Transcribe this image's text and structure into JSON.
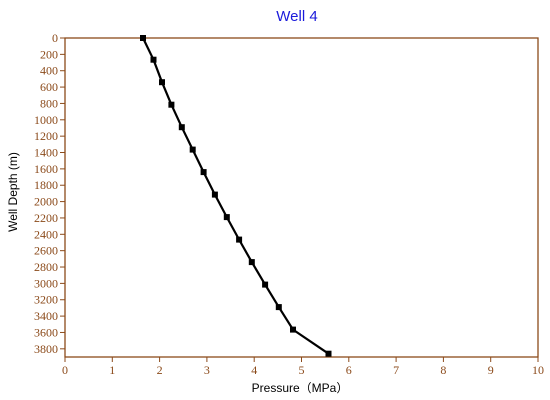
{
  "chart_data": {
    "type": "line",
    "title": "Well 4",
    "xlabel": "Pressure（MPa）",
    "ylabel": "Well Depth (m)",
    "xlim": [
      0,
      10
    ],
    "ylim": [
      3900,
      0
    ],
    "y_inverted": true,
    "xticks": [
      "0",
      "1",
      "2",
      "3",
      "4",
      "5",
      "6",
      "7",
      "8",
      "9",
      "10"
    ],
    "yticks": [
      "0",
      "200",
      "400",
      "600",
      "800",
      "1000",
      "1200",
      "1400",
      "1600",
      "1800",
      "2000",
      "2200",
      "2400",
      "2600",
      "2800",
      "3000",
      "3200",
      "3400",
      "3600",
      "3800"
    ],
    "grid": false,
    "legend": "none",
    "series": [
      {
        "x": [
          1.65,
          1.87,
          2.05,
          2.25,
          2.47,
          2.7,
          2.93,
          3.17,
          3.42,
          3.68,
          3.95,
          4.23,
          4.52,
          4.82,
          5.57
        ],
        "y": [
          0,
          265,
          540,
          815,
          1090,
          1365,
          1640,
          1915,
          2190,
          2465,
          2740,
          3015,
          3290,
          3565,
          3860
        ],
        "color": "#000000",
        "marker": "square"
      }
    ],
    "colors": {
      "title": "#1a1adb",
      "axis": "#8b4a1a",
      "tick_labels": "#8b4a1a",
      "line": "#000000"
    }
  }
}
